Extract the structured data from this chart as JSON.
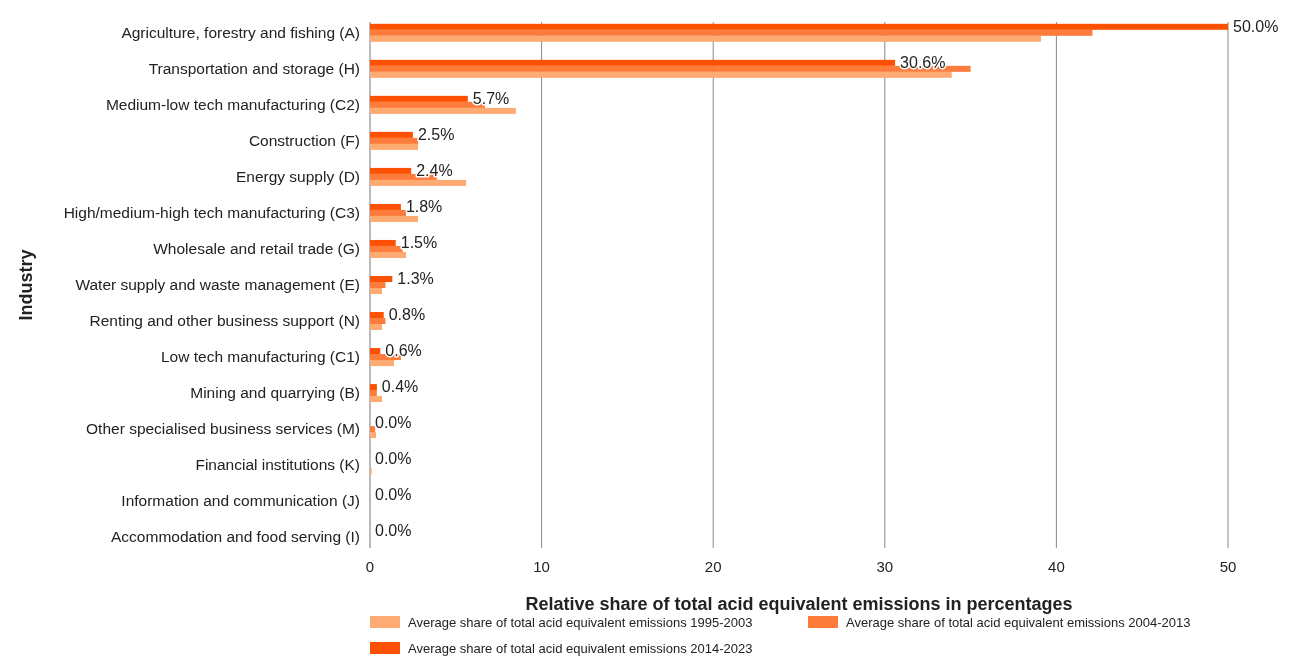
{
  "chart_data": {
    "type": "bar",
    "orientation": "horizontal",
    "xlabel": "Relative share of total acid equivalent emissions in percentages",
    "ylabel": "Industry",
    "categories": [
      "Agriculture, forestry and fishing (A)",
      "Transportation and storage (H)",
      "Medium-low tech manufacturing (C2)",
      "Construction (F)",
      "Energy supply (D)",
      "High/medium-high tech manufacturing (C3)",
      "Wholesale and retail trade (G)",
      "Water supply and waste management (E)",
      "Renting and other business support (N)",
      "Low tech manufacturing (C1)",
      "Mining and quarrying (B)",
      "Other specialised business services (M)",
      "Financial institutions (K)",
      "Information and communication (J)",
      "Accommodation and food serving (I)"
    ],
    "series": [
      {
        "name": "Average share of total acid equivalent emissions 1995-2003",
        "color": "#fdaa73",
        "values": [
          39.1,
          33.9,
          8.5,
          2.8,
          5.6,
          2.8,
          2.1,
          0.7,
          0.7,
          1.4,
          0.7,
          0.35,
          0.1,
          0,
          0
        ]
      },
      {
        "name": "Average share of total acid equivalent emissions 2004-2013",
        "color": "#fd7b3b",
        "values": [
          42.1,
          35.0,
          6.7,
          2.8,
          3.9,
          2.1,
          1.9,
          0.9,
          0.9,
          1.8,
          0.4,
          0.3,
          null,
          0,
          0
        ]
      },
      {
        "name": "Average share of total acid equivalent emissions 2014-2023",
        "color": "#fc5102",
        "values": [
          50.0,
          30.6,
          5.7,
          2.5,
          2.4,
          1.8,
          1.5,
          1.3,
          0.8,
          0.6,
          0.4,
          0.0,
          0.0,
          0.0,
          0.0
        ],
        "value_labels": [
          "50.0%",
          "30.6%",
          "5.7%",
          "2.5%",
          "2.4%",
          "1.8%",
          "1.5%",
          "1.3%",
          "0.8%",
          "0.6%",
          "0.4%",
          "0.0%",
          "0.0%",
          "0.0%",
          "0.0%"
        ]
      }
    ],
    "xlim": [
      0,
      50
    ],
    "xticks": [
      0,
      10,
      20,
      30,
      40,
      50
    ],
    "grid": "x",
    "legend": "bottom"
  }
}
